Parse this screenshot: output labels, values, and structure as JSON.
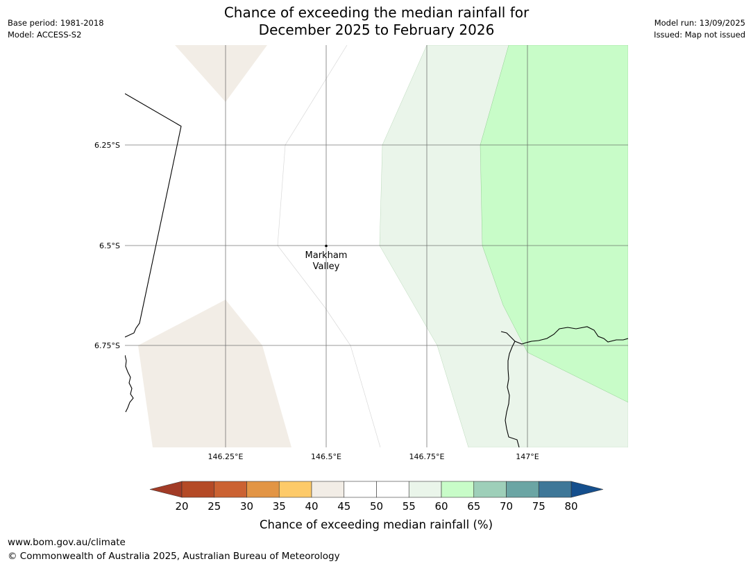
{
  "header": {
    "title_line1": "Chance of exceeding the median rainfall for",
    "title_line2": "December 2025 to February 2026",
    "base_period": "Base period: 1981-2018",
    "model": "Model: ACCESS-S2",
    "model_run": "Model run: 13/09/2025",
    "issued": "Issued: Map not issued"
  },
  "map": {
    "lat_labels": [
      "6.25°S",
      "6.5°S",
      "6.75°S"
    ],
    "lon_labels": [
      "146.25°E",
      "146.5°E",
      "146.75°E",
      "147°E"
    ],
    "place": {
      "name_line1": "Markham",
      "name_line2": "Valley"
    },
    "colors": {
      "band_40_45": "#f2ede6",
      "band_55_60": "#eaf5ea",
      "band_60_65": "#c8fcc8",
      "coastline": "#000000",
      "gridline": "#555555"
    }
  },
  "colorbar": {
    "ticks": [
      "20",
      "25",
      "30",
      "35",
      "40",
      "45",
      "50",
      "55",
      "60",
      "65",
      "70",
      "75",
      "80"
    ],
    "low_color": "#a23b26",
    "high_color": "#154f8d",
    "colors": [
      "#b44a26",
      "#cb6232",
      "#e29545",
      "#fdca69",
      "#f2ede6",
      "#ffffff",
      "#ffffff",
      "#eaf5ea",
      "#c8fcc8",
      "#9ecfb9",
      "#6ba5a4",
      "#3e7798"
    ],
    "label": "Chance of exceeding median rainfall (%)"
  },
  "footer": {
    "url": "www.bom.gov.au/climate",
    "copyright": "© Commonwealth of Australia 2025, Australian Bureau of Meteorology"
  }
}
